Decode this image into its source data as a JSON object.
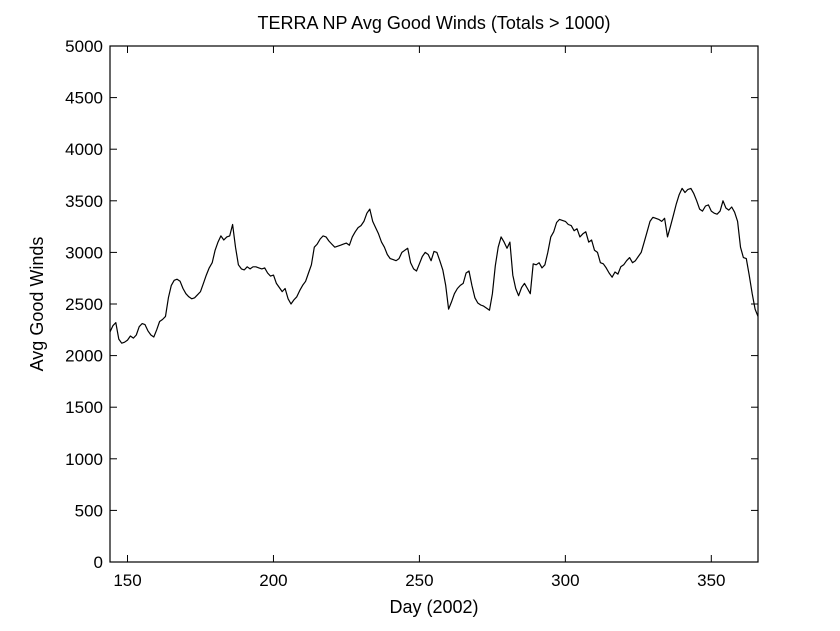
{
  "chart_data": {
    "type": "line",
    "title": "TERRA NP Avg Good Winds (Totals > 1000)",
    "xlabel": "Day (2002)",
    "ylabel": "Avg Good Winds",
    "xlim": [
      144,
      366
    ],
    "ylim": [
      0,
      5000
    ],
    "xticks": [
      150,
      200,
      250,
      300,
      350
    ],
    "yticks": [
      0,
      500,
      1000,
      1500,
      2000,
      2500,
      3000,
      3500,
      4000,
      4500,
      5000
    ],
    "grid": false,
    "line_color": "#000000",
    "series": [
      {
        "points": [
          [
            144,
            2230
          ],
          [
            145,
            2290
          ],
          [
            146,
            2320
          ],
          [
            147,
            2160
          ],
          [
            148,
            2120
          ],
          [
            149,
            2130
          ],
          [
            150,
            2150
          ],
          [
            151,
            2190
          ],
          [
            152,
            2170
          ],
          [
            153,
            2200
          ],
          [
            154,
            2280
          ],
          [
            155,
            2310
          ],
          [
            156,
            2300
          ],
          [
            157,
            2240
          ],
          [
            158,
            2200
          ],
          [
            159,
            2180
          ],
          [
            160,
            2250
          ],
          [
            161,
            2330
          ],
          [
            162,
            2350
          ],
          [
            163,
            2380
          ],
          [
            164,
            2560
          ],
          [
            165,
            2680
          ],
          [
            166,
            2730
          ],
          [
            167,
            2740
          ],
          [
            168,
            2720
          ],
          [
            169,
            2650
          ],
          [
            170,
            2600
          ],
          [
            171,
            2570
          ],
          [
            172,
            2550
          ],
          [
            173,
            2560
          ],
          [
            174,
            2590
          ],
          [
            175,
            2620
          ],
          [
            176,
            2700
          ],
          [
            177,
            2780
          ],
          [
            178,
            2850
          ],
          [
            179,
            2900
          ],
          [
            180,
            3020
          ],
          [
            181,
            3100
          ],
          [
            182,
            3160
          ],
          [
            183,
            3120
          ],
          [
            184,
            3150
          ],
          [
            185,
            3160
          ],
          [
            186,
            3270
          ],
          [
            187,
            3050
          ],
          [
            188,
            2880
          ],
          [
            189,
            2840
          ],
          [
            190,
            2830
          ],
          [
            191,
            2860
          ],
          [
            192,
            2840
          ],
          [
            193,
            2860
          ],
          [
            194,
            2860
          ],
          [
            195,
            2850
          ],
          [
            196,
            2840
          ],
          [
            197,
            2850
          ],
          [
            198,
            2800
          ],
          [
            199,
            2770
          ],
          [
            200,
            2780
          ],
          [
            201,
            2700
          ],
          [
            202,
            2660
          ],
          [
            203,
            2620
          ],
          [
            204,
            2650
          ],
          [
            205,
            2550
          ],
          [
            206,
            2500
          ],
          [
            207,
            2540
          ],
          [
            208,
            2570
          ],
          [
            209,
            2630
          ],
          [
            210,
            2680
          ],
          [
            211,
            2720
          ],
          [
            212,
            2800
          ],
          [
            213,
            2880
          ],
          [
            214,
            3050
          ],
          [
            215,
            3080
          ],
          [
            216,
            3130
          ],
          [
            217,
            3160
          ],
          [
            218,
            3150
          ],
          [
            219,
            3110
          ],
          [
            220,
            3080
          ],
          [
            221,
            3050
          ],
          [
            222,
            3060
          ],
          [
            223,
            3070
          ],
          [
            224,
            3080
          ],
          [
            225,
            3090
          ],
          [
            226,
            3070
          ],
          [
            227,
            3150
          ],
          [
            228,
            3200
          ],
          [
            229,
            3240
          ],
          [
            230,
            3260
          ],
          [
            231,
            3300
          ],
          [
            232,
            3380
          ],
          [
            233,
            3420
          ],
          [
            234,
            3300
          ],
          [
            235,
            3240
          ],
          [
            236,
            3180
          ],
          [
            237,
            3100
          ],
          [
            238,
            3050
          ],
          [
            239,
            2980
          ],
          [
            240,
            2940
          ],
          [
            241,
            2930
          ],
          [
            242,
            2920
          ],
          [
            243,
            2940
          ],
          [
            244,
            3000
          ],
          [
            245,
            3020
          ],
          [
            246,
            3040
          ],
          [
            247,
            2900
          ],
          [
            248,
            2840
          ],
          [
            249,
            2820
          ],
          [
            250,
            2890
          ],
          [
            251,
            2960
          ],
          [
            252,
            3000
          ],
          [
            253,
            2980
          ],
          [
            254,
            2920
          ],
          [
            255,
            3010
          ],
          [
            256,
            3000
          ],
          [
            257,
            2920
          ],
          [
            258,
            2830
          ],
          [
            259,
            2680
          ],
          [
            260,
            2450
          ],
          [
            261,
            2520
          ],
          [
            262,
            2600
          ],
          [
            263,
            2650
          ],
          [
            264,
            2680
          ],
          [
            265,
            2700
          ],
          [
            266,
            2800
          ],
          [
            267,
            2820
          ],
          [
            268,
            2680
          ],
          [
            269,
            2560
          ],
          [
            270,
            2510
          ],
          [
            271,
            2490
          ],
          [
            272,
            2480
          ],
          [
            273,
            2460
          ],
          [
            274,
            2440
          ],
          [
            275,
            2600
          ],
          [
            276,
            2870
          ],
          [
            277,
            3050
          ],
          [
            278,
            3150
          ],
          [
            279,
            3100
          ],
          [
            280,
            3040
          ],
          [
            281,
            3100
          ],
          [
            282,
            2780
          ],
          [
            283,
            2650
          ],
          [
            284,
            2580
          ],
          [
            285,
            2660
          ],
          [
            286,
            2700
          ],
          [
            287,
            2650
          ],
          [
            288,
            2600
          ],
          [
            289,
            2890
          ],
          [
            290,
            2880
          ],
          [
            291,
            2900
          ],
          [
            292,
            2850
          ],
          [
            293,
            2880
          ],
          [
            294,
            3000
          ],
          [
            295,
            3150
          ],
          [
            296,
            3200
          ],
          [
            297,
            3290
          ],
          [
            298,
            3320
          ],
          [
            299,
            3310
          ],
          [
            300,
            3300
          ],
          [
            301,
            3270
          ],
          [
            302,
            3260
          ],
          [
            303,
            3210
          ],
          [
            304,
            3230
          ],
          [
            305,
            3150
          ],
          [
            306,
            3180
          ],
          [
            307,
            3200
          ],
          [
            308,
            3100
          ],
          [
            309,
            3120
          ],
          [
            310,
            3020
          ],
          [
            311,
            3000
          ],
          [
            312,
            2900
          ],
          [
            313,
            2890
          ],
          [
            314,
            2850
          ],
          [
            315,
            2800
          ],
          [
            316,
            2760
          ],
          [
            317,
            2810
          ],
          [
            318,
            2790
          ],
          [
            319,
            2860
          ],
          [
            320,
            2880
          ],
          [
            321,
            2920
          ],
          [
            322,
            2950
          ],
          [
            323,
            2900
          ],
          [
            324,
            2920
          ],
          [
            325,
            2960
          ],
          [
            326,
            3000
          ],
          [
            327,
            3100
          ],
          [
            328,
            3200
          ],
          [
            329,
            3300
          ],
          [
            330,
            3340
          ],
          [
            331,
            3330
          ],
          [
            332,
            3320
          ],
          [
            333,
            3300
          ],
          [
            334,
            3330
          ],
          [
            335,
            3150
          ],
          [
            336,
            3250
          ],
          [
            337,
            3360
          ],
          [
            338,
            3470
          ],
          [
            339,
            3560
          ],
          [
            340,
            3620
          ],
          [
            341,
            3580
          ],
          [
            342,
            3610
          ],
          [
            343,
            3620
          ],
          [
            344,
            3570
          ],
          [
            345,
            3500
          ],
          [
            346,
            3420
          ],
          [
            347,
            3400
          ],
          [
            348,
            3450
          ],
          [
            349,
            3460
          ],
          [
            350,
            3400
          ],
          [
            351,
            3380
          ],
          [
            352,
            3370
          ],
          [
            353,
            3400
          ],
          [
            354,
            3500
          ],
          [
            355,
            3430
          ],
          [
            356,
            3410
          ],
          [
            357,
            3440
          ],
          [
            358,
            3390
          ],
          [
            359,
            3300
          ],
          [
            360,
            3050
          ],
          [
            361,
            2950
          ],
          [
            362,
            2940
          ],
          [
            363,
            2780
          ],
          [
            364,
            2600
          ],
          [
            365,
            2450
          ],
          [
            366,
            2380
          ]
        ]
      }
    ]
  }
}
